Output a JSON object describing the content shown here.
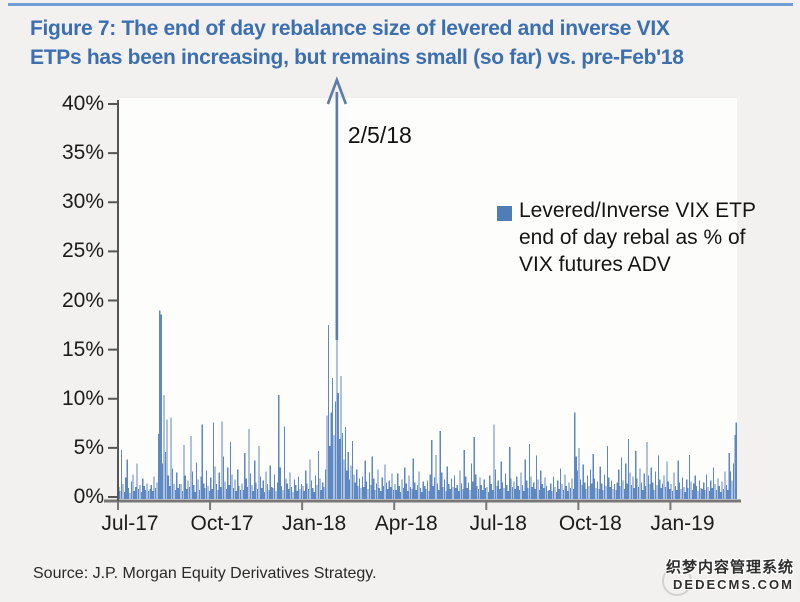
{
  "title": {
    "line1": "Figure 7: The end of day rebalance size of levered and inverse VIX",
    "line2": "ETPs has been increasing, but remains small (so far) vs. pre-Feb'18",
    "color": "#3c6fb0"
  },
  "legend": {
    "marker_color": "#4f7db8",
    "lines": [
      "Levered/Inverse VIX ETP",
      "end of day rebal as % of",
      "VIX futures ADV"
    ]
  },
  "source": {
    "text": "Source: J.P. Morgan Equity Derivatives Strategy."
  },
  "watermark": {
    "line1": "织梦内容管理系统",
    "line2": "DEDECMS.COM"
  },
  "colors": {
    "top_rule": "#6f9fd4",
    "bar": "#5e88c2",
    "arrow": "#5e7ba8",
    "y_axis": "#555555",
    "x_axis": "#777777",
    "plot_bg": "#fdfdfc"
  },
  "chart_data": {
    "type": "bar",
    "series_name": "Levered/Inverse VIX ETP end of day rebal as % of VIX futures ADV",
    "unit": "%",
    "frequency": "daily (trading days), values estimated from pixels",
    "x_range": [
      "Jul-2017",
      "Mar-2019"
    ],
    "ylim": [
      0,
      40
    ],
    "grid": false,
    "legend_position": "upper right inside plot",
    "yticks": [
      0,
      5,
      10,
      15,
      20,
      25,
      30,
      35,
      40
    ],
    "ytick_suffix": "%",
    "xticks": [
      {
        "label": "Jul-17",
        "index": 0
      },
      {
        "label": "Oct-17",
        "index": 65
      },
      {
        "label": "Jan-18",
        "index": 130
      },
      {
        "label": "Apr-18",
        "index": 195
      },
      {
        "label": "Jul-18",
        "index": 260
      },
      {
        "label": "Oct-18",
        "index": 325
      },
      {
        "label": "Jan-19",
        "index": 390
      }
    ],
    "annotations": [
      {
        "text": "2/5/18",
        "index": 154,
        "value": 43.0,
        "clipped_above_ymax": true
      }
    ],
    "values": [
      1.0,
      0.6,
      4.8,
      1.3,
      0.5,
      2.0,
      3.8,
      0.9,
      0.4,
      1.6,
      2.3,
      0.6,
      1.0,
      3.4,
      0.8,
      1.2,
      0.5,
      1.9,
      1.1,
      0.7,
      1.4,
      0.6,
      0.8,
      1.2,
      0.6,
      2.1,
      0.9,
      1.5,
      6.4,
      19.0,
      18.6,
      3.4,
      10.4,
      4.6,
      7.9,
      2.2,
      1.1,
      8.1,
      2.9,
      1.4,
      0.7,
      2.5,
      0.9,
      1.3,
      1.3,
      0.6,
      5.3,
      2.2,
      0.8,
      1.7,
      1.0,
      6.2,
      2.6,
      1.2,
      0.5,
      3.5,
      1.8,
      0.7,
      2.1,
      7.4,
      1.4,
      0.9,
      2.7,
      1.1,
      0.6,
      2.0,
      0.8,
      7.6,
      3.1,
      1.3,
      0.7,
      2.5,
      1.0,
      7.7,
      4.1,
      1.6,
      0.8,
      3.0,
      1.2,
      5.6,
      2.3,
      0.9,
      1.8,
      0.6,
      2.8,
      1.1,
      0.7,
      1.4,
      0.7,
      4.5,
      1.9,
      1.0,
      6.9,
      2.4,
      1.2,
      0.6,
      3.7,
      1.5,
      0.8,
      5.2,
      2.1,
      0.9,
      1.7,
      0.5,
      2.6,
      1.3,
      0.7,
      3.2,
      1.0,
      0.9,
      2.3,
      0.6,
      1.5,
      10.4,
      3.0,
      1.1,
      0.7,
      7.2,
      1.9,
      1.4,
      0.8,
      2.5,
      1.0,
      0.5,
      1.8,
      1.2,
      0.6,
      2.1,
      0.8,
      1.3,
      1.1,
      0.6,
      2.7,
      1.4,
      0.8,
      3.8,
      1.7,
      0.9,
      0.5,
      2.2,
      1.2,
      4.7,
      1.9,
      0.7,
      1.5,
      1.0,
      2.8,
      8.3,
      17.5,
      5.2,
      8.6,
      12.1,
      6.3,
      9.7,
      43.0,
      10.6,
      5.9,
      12.3,
      6.5,
      3.8,
      7.1,
      2.7,
      4.6,
      1.8,
      3.2,
      5.7,
      2.3,
      1.5,
      2.8,
      1.1,
      1.9,
      0.9,
      2.1,
      1.0,
      3.7,
      1.6,
      0.8,
      2.5,
      1.2,
      4.1,
      1.9,
      0.7,
      1.4,
      2.8,
      0.9,
      0.6,
      2.0,
      1.1,
      3.3,
      1.5,
      0.8,
      1.7,
      1.0,
      2.4,
      0.7,
      1.3,
      0.7,
      2.4,
      1.1,
      0.5,
      1.8,
      0.9,
      3.0,
      1.4,
      0.6,
      2.2,
      1.0,
      0.8,
      3.9,
      1.5,
      0.7,
      1.2,
      2.6,
      0.9,
      0.5,
      1.6,
      1.1,
      0.8,
      1.7,
      0.6,
      2.3,
      5.8,
      1.1,
      2.0,
      4.3,
      1.4,
      0.7,
      6.7,
      2.5,
      1.0,
      1.8,
      0.6,
      3.1,
      1.3,
      0.8,
      1.9,
      1.0,
      2.2,
      0.9,
      1.2,
      0.6,
      2.7,
      1.4,
      0.8,
      4.8,
      2.1,
      0.9,
      1.5,
      0.7,
      3.4,
      1.6,
      6.1,
      2.3,
      1.1,
      0.8,
      2.0,
      1.2,
      0.7,
      1.8,
      0.9,
      1.0,
      0.5,
      2.2,
      1.3,
      0.7,
      7.4,
      2.8,
      1.1,
      1.7,
      0.8,
      3.6,
      1.5,
      0.9,
      2.4,
      1.2,
      0.6,
      5.1,
      1.9,
      1.0,
      1.6,
      0.8,
      2.1,
      1.1,
      0.7,
      2.5,
      1.2,
      0.6,
      3.8,
      1.7,
      0.9,
      5.4,
      2.1,
      1.0,
      1.5,
      0.8,
      4.2,
      1.8,
      0.7,
      2.7,
      1.3,
      0.9,
      2.0,
      1.1,
      0.6,
      0.7,
      1.4,
      0.6,
      2.1,
      1.0,
      0.5,
      1.7,
      0.8,
      2.9,
      1.3,
      0.7,
      2.3,
      1.1,
      0.6,
      1.5,
      0.9,
      1.9,
      0.8,
      8.6,
      4.1,
      2.7,
      5.0,
      1.8,
      1.2,
      3.3,
      1.5,
      0.8,
      2.2,
      1.1,
      2.8,
      1.4,
      4.4,
      1.9,
      0.9,
      1.6,
      0.8,
      3.1,
      1.4,
      0.7,
      2.3,
      1.1,
      5.2,
      2.0,
      1.0,
      1.7,
      0.8,
      1.3,
      0.7,
      1.5,
      2.8,
      1.1,
      4.0,
      1.7,
      0.8,
      3.4,
      1.4,
      5.9,
      2.5,
      1.2,
      2.1,
      0.9,
      4.7,
      1.9,
      1.0,
      2.9,
      1.5,
      0.7,
      2.4,
      1.1,
      5.6,
      2.2,
      1.3,
      3.0,
      1.5,
      0.7,
      2.6,
      1.2,
      4.2,
      1.8,
      0.9,
      1.4,
      2.2,
      1.0,
      3.6,
      1.6,
      0.8,
      1.3,
      0.6,
      2.5,
      1.1,
      0.7,
      3.7,
      1.5,
      0.8,
      2.0,
      1.0,
      0.5,
      1.8,
      0.9,
      4.3,
      1.6,
      0.7,
      1.4,
      2.2,
      1.1,
      0.6,
      1.7,
      0.9,
      0.8,
      1.5,
      0.7,
      2.3,
      1.0,
      0.6,
      1.7,
      0.9,
      3.0,
      1.3,
      0.7,
      1.9,
      1.1,
      0.5,
      1.6,
      0.8,
      2.6,
      1.2,
      0.7,
      4.5,
      2.6,
      1.7,
      3.4,
      6.3,
      7.6
    ]
  }
}
